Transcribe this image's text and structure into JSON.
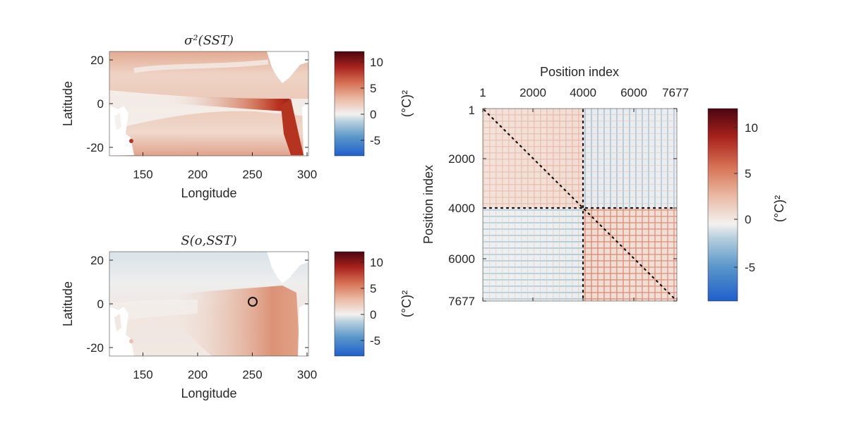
{
  "colors": {
    "diverging_scale": [
      "#1f5fcc",
      "#4f93c7",
      "#a8c8dc",
      "#f2f0ee",
      "#e8b7a2",
      "#d77458",
      "#b0281f",
      "#4a0510"
    ],
    "text": "#262626",
    "axis": "#262626"
  },
  "chart_data": [
    {
      "type": "heatmap",
      "title": "σ²(SST)",
      "xlabel": "Longitude",
      "ylabel": "Latitude",
      "xlim": [
        120,
        302
      ],
      "ylim": [
        -24,
        24
      ],
      "xticks": [
        "150",
        "200",
        "250",
        "300"
      ],
      "yticks": [
        "20",
        "0",
        "-20"
      ],
      "colorbar": {
        "label": "(°C)²",
        "range": [
          -8,
          12
        ],
        "ticks": [
          "10",
          "5",
          "0",
          "-5"
        ]
      },
      "description_of_field": "positive variance, maximum along the eastern equatorial Pacific coast"
    },
    {
      "type": "heatmap",
      "title": "S(o,SST)",
      "xlabel": "Longitude",
      "ylabel": "Latitude",
      "xlim": [
        120,
        302
      ],
      "ylim": [
        -24,
        24
      ],
      "xticks": [
        "150",
        "200",
        "250",
        "300"
      ],
      "yticks": [
        "20",
        "0",
        "-20"
      ],
      "marker": {
        "lon": 250,
        "lat": 0,
        "shape": "circle"
      },
      "colorbar": {
        "label": "(°C)²",
        "range": [
          -8,
          12
        ],
        "ticks": [
          "10",
          "5",
          "0",
          "-5"
        ]
      }
    },
    {
      "type": "heatmap",
      "title": "",
      "xlabel": "Position index",
      "ylabel": "Position index",
      "xlim": [
        1,
        7677
      ],
      "ylim": [
        1,
        7677
      ],
      "xticks": [
        "1",
        "2000",
        "4000",
        "6000",
        "7677"
      ],
      "yticks": [
        "1",
        "2000",
        "4000",
        "6000",
        "7677"
      ],
      "reference_index": 4000,
      "colorbar": {
        "label": "(°C)²",
        "range": [
          -8,
          12
        ],
        "ticks": [
          "10",
          "5",
          "0",
          "-5"
        ]
      }
    }
  ]
}
